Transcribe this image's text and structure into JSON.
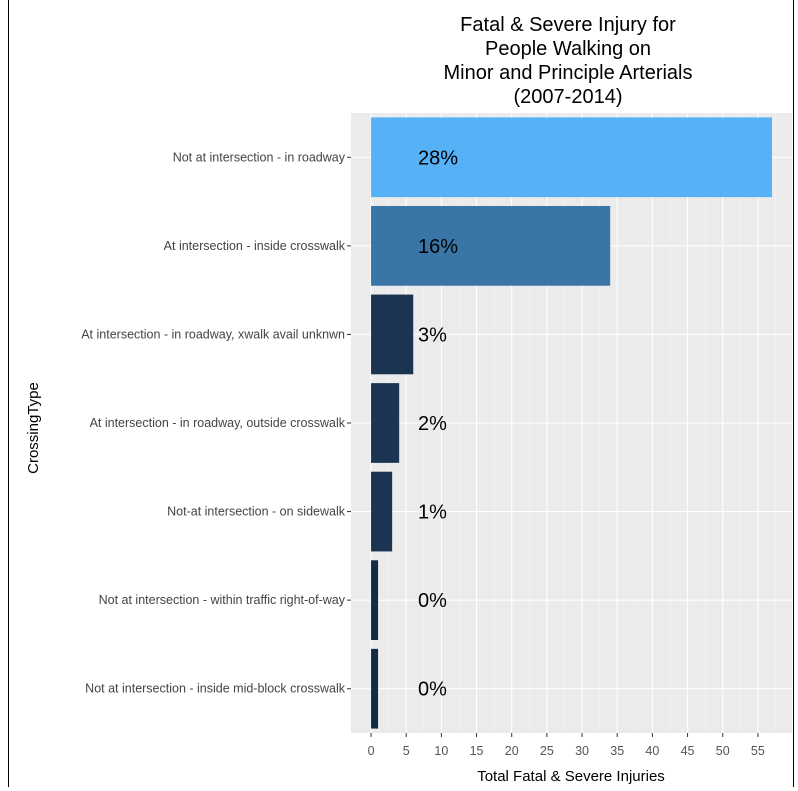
{
  "chart_data": {
    "type": "bar",
    "orientation": "horizontal",
    "title_lines": [
      "Fatal & Severe Injury for",
      "People Walking on",
      "Minor and Principle Arterials",
      "(2007-2014)"
    ],
    "xlabel": "Total Fatal & Severe Injuries",
    "ylabel": "CrossingType",
    "xlim": [
      0,
      57
    ],
    "xticks": [
      0,
      5,
      10,
      15,
      20,
      25,
      30,
      35,
      40,
      45,
      50,
      55
    ],
    "grid": true,
    "categories": [
      "Not at intersection - in roadway",
      "At intersection - inside crosswalk",
      "At intersection - in roadway, xwalk avail unknwn",
      "At intersection - in roadway, outside crosswalk",
      "Not-at intersection - on sidewalk",
      "Not at intersection - within traffic right-of-way",
      "Not at intersection - inside mid-block crosswalk"
    ],
    "values": [
      57,
      34,
      6,
      4,
      3,
      1,
      1
    ],
    "labels": [
      "28%",
      "16%",
      "3%",
      "2%",
      "1%",
      "0%",
      "0%"
    ],
    "colors": [
      "#56b1f7",
      "#3a75a8",
      "#1a3451",
      "#1a3451",
      "#1a3451",
      "#132b43",
      "#132b43"
    ]
  },
  "style": {
    "panel_bg": "#ebebeb",
    "grid_major": "#ffffff",
    "grid_minor": "#f5f5f5"
  }
}
